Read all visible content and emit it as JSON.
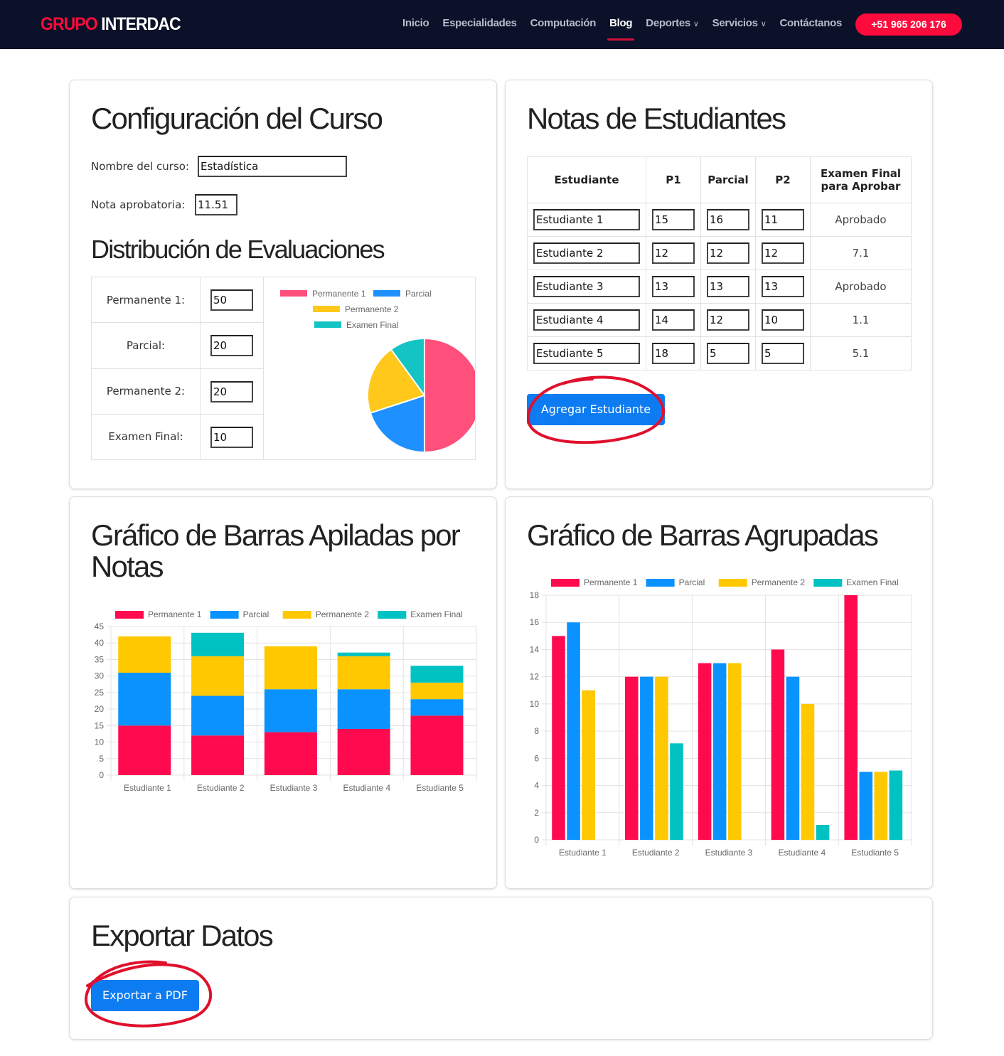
{
  "nav": {
    "logo_red": "GRUPO",
    "logo_white": "INTERDAC",
    "items": [
      {
        "label": "Inicio",
        "active": false,
        "dropdown": false
      },
      {
        "label": "Especialidades",
        "active": false,
        "dropdown": false
      },
      {
        "label": "Computación",
        "active": false,
        "dropdown": false
      },
      {
        "label": "Blog",
        "active": true,
        "dropdown": false
      },
      {
        "label": "Deportes",
        "active": false,
        "dropdown": true
      },
      {
        "label": "Servicios",
        "active": false,
        "dropdown": true
      },
      {
        "label": "Contáctanos",
        "active": false,
        "dropdown": false
      }
    ],
    "phone": "+51 965 206 176"
  },
  "config": {
    "title": "Configuración del Curso",
    "course_label": "Nombre del curso:",
    "course_value": "Estadística",
    "pass_label": "Nota aprobatoria:",
    "pass_value": "11.51",
    "dist_title": "Distribución de Evaluaciones",
    "weights": [
      {
        "label": "Permanente 1:",
        "value": "50"
      },
      {
        "label": "Parcial:",
        "value": "20"
      },
      {
        "label": "Permanente 2:",
        "value": "20"
      },
      {
        "label": "Examen Final:",
        "value": "10"
      }
    ]
  },
  "colors": {
    "permanente1": "#ff0a4e",
    "parcial": "#0a93ff",
    "permanente2": "#ffc800",
    "examen_final": "#00c2c2",
    "pie_permanente1": "#ff4f7b",
    "pie_parcial": "#1e90ff",
    "pie_permanente2": "#ffc81a",
    "pie_examen_final": "#14c4c4"
  },
  "notas": {
    "title": "Notas de Estudiantes",
    "headers": [
      "Estudiante",
      "P1",
      "Parcial",
      "P2",
      "Examen Final para Aprobar"
    ],
    "rows": [
      [
        "Estudiante 1",
        "15",
        "16",
        "11",
        "Aprobado"
      ],
      [
        "Estudiante 2",
        "12",
        "12",
        "12",
        "7.1"
      ],
      [
        "Estudiante 3",
        "13",
        "13",
        "13",
        "Aprobado"
      ],
      [
        "Estudiante 4",
        "14",
        "12",
        "10",
        "1.1"
      ],
      [
        "Estudiante 5",
        "18",
        "5",
        "5",
        "5.1"
      ]
    ],
    "add_button": "Agregar Estudiante"
  },
  "stacked": {
    "title": "Gráfico de Barras Apiladas por Notas"
  },
  "grouped": {
    "title": "Gráfico de Barras Agrupadas"
  },
  "export": {
    "title": "Exportar Datos",
    "button": "Exportar a PDF"
  },
  "chart_data": [
    {
      "type": "pie",
      "labels": [
        "Permanente 1",
        "Parcial",
        "Permanente 2",
        "Examen Final"
      ],
      "values": [
        50,
        20,
        20,
        10
      ],
      "legend": "top"
    },
    {
      "type": "bar",
      "stacked": true,
      "categories": [
        "Estudiante 1",
        "Estudiante 2",
        "Estudiante 3",
        "Estudiante 4",
        "Estudiante 5"
      ],
      "series": [
        {
          "name": "Permanente 1",
          "values": [
            15,
            12,
            13,
            14,
            18
          ]
        },
        {
          "name": "Parcial",
          "values": [
            16,
            12,
            13,
            12,
            5
          ]
        },
        {
          "name": "Permanente 2",
          "values": [
            11,
            12,
            13,
            10,
            5
          ]
        },
        {
          "name": "Examen Final",
          "values": [
            0,
            7.1,
            0,
            1.1,
            5.1
          ]
        }
      ],
      "ylim": [
        0,
        45
      ],
      "yticks": [
        0,
        5,
        10,
        15,
        20,
        25,
        30,
        35,
        40,
        45
      ],
      "grid": true,
      "legend": "top"
    },
    {
      "type": "bar",
      "stacked": false,
      "categories": [
        "Estudiante 1",
        "Estudiante 2",
        "Estudiante 3",
        "Estudiante 4",
        "Estudiante 5"
      ],
      "series": [
        {
          "name": "Permanente 1",
          "values": [
            15,
            12,
            13,
            14,
            18
          ]
        },
        {
          "name": "Parcial",
          "values": [
            16,
            12,
            13,
            12,
            5
          ]
        },
        {
          "name": "Permanente 2",
          "values": [
            11,
            12,
            13,
            10,
            5
          ]
        },
        {
          "name": "Examen Final",
          "values": [
            0,
            7.1,
            0,
            1.1,
            5.1
          ]
        }
      ],
      "ylim": [
        0,
        18
      ],
      "yticks": [
        0,
        2,
        4,
        6,
        8,
        10,
        12,
        14,
        16,
        18
      ],
      "grid": true,
      "legend": "top"
    }
  ]
}
